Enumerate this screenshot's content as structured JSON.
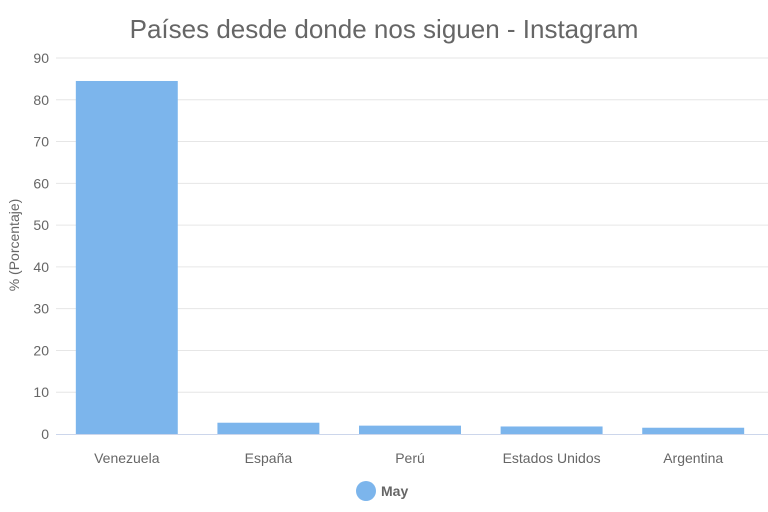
{
  "chart_data": {
    "type": "bar",
    "title": "Países desde donde nos siguen - Instagram",
    "xlabel": "",
    "ylabel": "% (Porcentaje)",
    "ylim": [
      0,
      90
    ],
    "yticks": [
      0,
      10,
      20,
      30,
      40,
      50,
      60,
      70,
      80,
      90
    ],
    "categories": [
      "Venezuela",
      "España",
      "Perú",
      "Estados Unidos",
      "Argentina"
    ],
    "series": [
      {
        "name": "May",
        "values": [
          84.5,
          2.7,
          2.0,
          1.8,
          1.5
        ],
        "color": "#7cb5ec"
      }
    ],
    "grid": true,
    "legend_position": "bottom"
  }
}
